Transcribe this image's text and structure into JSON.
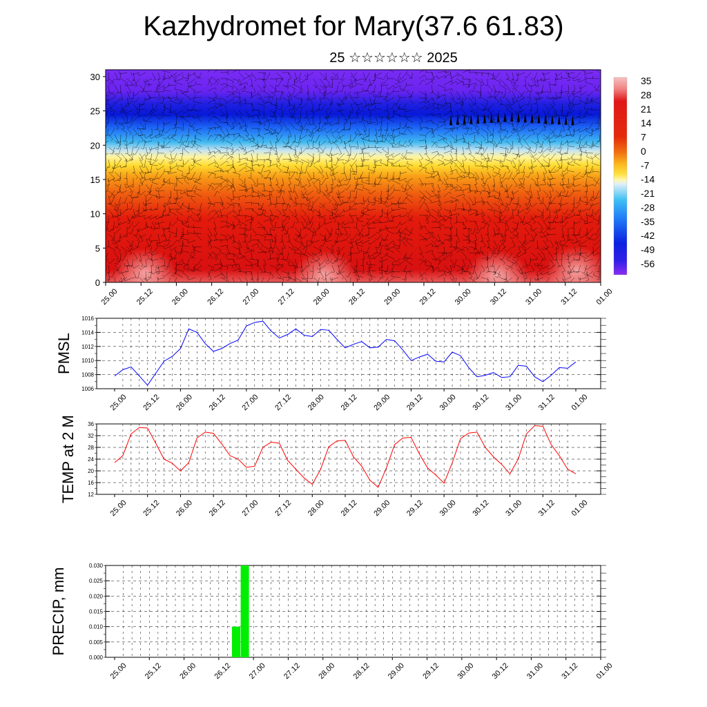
{
  "page": {
    "title": "Kazhydromet for Mary(37.6 61.83)",
    "subtitle": "25 ☆☆☆☆☆☆ 2025"
  },
  "chart_data": [
    {
      "type": "heatmap",
      "title": "",
      "xlabel": "",
      "ylabel": "",
      "x_tick_labels": [
        "25.00",
        "25.12",
        "26.00",
        "26.12",
        "27.00",
        "27.12",
        "28.00",
        "28.12",
        "29.00",
        "29.12",
        "30.00",
        "30.12",
        "31.00",
        "31.12",
        "01.00"
      ],
      "y_tick_labels": [
        "0",
        "5",
        "10",
        "15",
        "20",
        "25",
        "30"
      ],
      "ylim": [
        0,
        31
      ],
      "colorbar_labels": [
        "35",
        "28",
        "21",
        "14",
        "7",
        "0",
        "-7",
        "-14",
        "-21",
        "-28",
        "-35",
        "-42",
        "-49",
        "-56"
      ],
      "colors": [
        "#f4a3a3",
        "#e02010",
        "#f07010",
        "#ffd820",
        "#fff090",
        "#b8ddf0",
        "#30b0f0",
        "#2060ff",
        "#1010d0",
        "#7020f0"
      ],
      "vectors": "wind barbs overlay"
    },
    {
      "type": "line",
      "ylabel": "PMSL",
      "ylim": [
        1006,
        1016
      ],
      "y_tick_labels": [
        "1016",
        "1014",
        "1012",
        "1010",
        "1008",
        "1006"
      ],
      "x_tick_labels": [
        "25.00",
        "25.12",
        "26.00",
        "26.12",
        "27.00",
        "27.12",
        "28.00",
        "28.12",
        "29.00",
        "29.12",
        "30.00",
        "30.12",
        "31.00",
        "31.12",
        "01.00"
      ],
      "line_color": "#0000ff",
      "series": [
        {
          "values": [
            1007.8,
            1008.7,
            1009.1,
            1007.8,
            1006.5,
            1008.2,
            1009.9,
            1010.6,
            1011.7,
            1014.5,
            1014.0,
            1012.4,
            1011.3,
            1011.7,
            1012.4,
            1012.9,
            1014.9,
            1015.4,
            1015.6,
            1014.2,
            1013.2,
            1013.7,
            1014.5,
            1013.6,
            1013.4,
            1014.4,
            1014.3,
            1013.0,
            1011.8,
            1012.3,
            1012.7,
            1011.8,
            1011.9,
            1013.0,
            1012.8,
            1011.5,
            1010.0,
            1010.5,
            1010.9,
            1009.9,
            1009.8,
            1011.2,
            1010.7,
            1009.0,
            1007.7,
            1007.9,
            1008.3,
            1007.6,
            1007.7,
            1009.3,
            1009.2,
            1007.7,
            1007.0,
            1007.9,
            1009.0,
            1008.9,
            1009.8
          ]
        }
      ]
    },
    {
      "type": "line",
      "ylabel": "TEMP at 2 M",
      "ylim": [
        12,
        36
      ],
      "y_tick_labels": [
        "36",
        "32",
        "28",
        "24",
        "20",
        "16",
        "12"
      ],
      "x_tick_labels": [
        "25.00",
        "25.12",
        "26.00",
        "26.12",
        "27.00",
        "27.12",
        "28.00",
        "28.12",
        "29.00",
        "29.12",
        "30.00",
        "30.12",
        "31.00",
        "31.12",
        "01.00"
      ],
      "line_color": "#ff0000",
      "series": [
        {
          "values": [
            22.8,
            25.2,
            32.6,
            34.8,
            34.6,
            29.4,
            24.0,
            22.6,
            20.0,
            22.8,
            31.2,
            33.2,
            32.8,
            29.2,
            25.2,
            24.0,
            21.2,
            21.6,
            28.0,
            29.8,
            29.4,
            23.6,
            20.6,
            17.6,
            15.4,
            20.4,
            28.2,
            30.2,
            30.4,
            24.8,
            21.6,
            16.8,
            14.4,
            21.0,
            29.0,
            31.2,
            31.4,
            25.8,
            21.0,
            18.6,
            15.8,
            22.8,
            31.0,
            32.9,
            33.2,
            28.0,
            24.8,
            22.2,
            19.0,
            24.0,
            32.6,
            35.4,
            35.2,
            29.0,
            25.2,
            20.6,
            19.0
          ]
        }
      ]
    },
    {
      "type": "bar",
      "ylabel": "PRECIP, mm",
      "ylim": [
        0,
        0.03
      ],
      "y_tick_labels": [
        "0.030",
        "0.025",
        "0.020",
        "0.015",
        "0.010",
        "0.005",
        "0.000"
      ],
      "x_tick_labels": [
        "25.00",
        "25.12",
        "26.00",
        "26.12",
        "27.00",
        "27.12",
        "28.00",
        "28.12",
        "29.00",
        "29.12",
        "30.00",
        "30.12",
        "31.00",
        "31.12",
        "01.00"
      ],
      "bar_color": "#00ee00",
      "bars": [
        {
          "x": "26.18",
          "value": 0.01
        },
        {
          "x": "26.21",
          "value": 0.03
        }
      ]
    }
  ]
}
